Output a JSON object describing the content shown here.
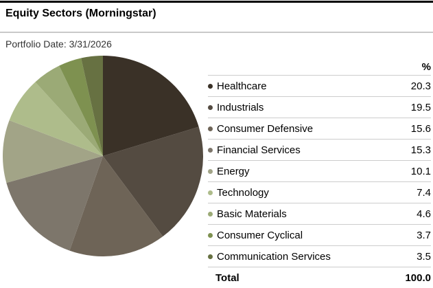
{
  "header": {
    "title": "Equity Sectors (Morningstar)",
    "portfolio_date": "Portfolio Date: 3/31/2026"
  },
  "legend": {
    "percent_header": "%",
    "total_label": "Total",
    "total_value": "100.0"
  },
  "colors": {
    "top_rule": "#000000",
    "header_divider": "#c9c9c9",
    "row_divider": "#cccccc"
  },
  "chart_data": {
    "type": "pie",
    "title": "Equity Sectors (Morningstar)",
    "subtitle": "Portfolio Date: 3/31/2026",
    "legend_position": "right",
    "start_angle_deg": -90,
    "direction": "clockwise",
    "total": 100.0,
    "series": [
      {
        "name": "Healthcare",
        "value": 20.3,
        "color": "#3a3127"
      },
      {
        "name": "Industrials",
        "value": 19.5,
        "color": "#544b41"
      },
      {
        "name": "Consumer Defensive",
        "value": 15.6,
        "color": "#6e6457"
      },
      {
        "name": "Financial Services",
        "value": 15.3,
        "color": "#7d766b"
      },
      {
        "name": "Energy",
        "value": 10.1,
        "color": "#a2a487"
      },
      {
        "name": "Technology",
        "value": 7.4,
        "color": "#aebc8b"
      },
      {
        "name": "Basic Materials",
        "value": 4.6,
        "color": "#9baa76"
      },
      {
        "name": "Consumer Cyclical",
        "value": 3.7,
        "color": "#7e9150"
      },
      {
        "name": "Communication Services",
        "value": 3.5,
        "color": "#677142"
      }
    ]
  }
}
